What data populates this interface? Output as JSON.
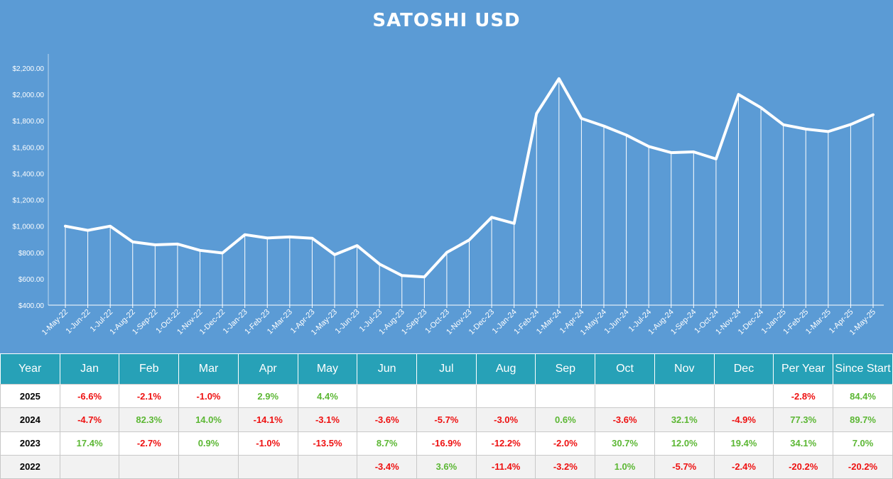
{
  "colors": {
    "chart_bg": "#5b9bd5",
    "header_bg": "#27a1b7",
    "positive": "#5cb734",
    "negative": "#ee1111",
    "line": "#ffffff"
  },
  "chart_data": {
    "type": "line",
    "title": "SATOSHI USD",
    "x": [
      "1-May-22",
      "1-Jun-22",
      "1-Jul-22",
      "1-Aug-22",
      "1-Sep-22",
      "1-Oct-22",
      "1-Nov-22",
      "1-Dec-22",
      "1-Jan-23",
      "1-Feb-23",
      "1-Mar-23",
      "1-Apr-23",
      "1-May-23",
      "1-Jun-23",
      "1-Jul-23",
      "1-Aug-23",
      "1-Sep-23",
      "1-Oct-23",
      "1-Nov-23",
      "1-Dec-23",
      "1-Jan-24",
      "1-Feb-24",
      "1-Mar-24",
      "1-Apr-24",
      "1-May-24",
      "1-Jun-24",
      "1-Jul-24",
      "1-Aug-24",
      "1-Sep-24",
      "1-Oct-24",
      "1-Nov-24",
      "1-Dec-24",
      "1-Jan-25",
      "1-Feb-25",
      "1-Mar-25",
      "1-Apr-25",
      "1-May-25"
    ],
    "values": [
      1000,
      968,
      1000,
      880,
      858,
      864,
      816,
      796,
      935,
      910,
      918,
      908,
      783,
      852,
      712,
      625,
      614,
      800,
      895,
      1067,
      1021,
      1855,
      2120,
      1818,
      1760,
      1692,
      1605,
      1558,
      1564,
      1510,
      2000,
      1900,
      1770,
      1737,
      1718,
      1772,
      1846
    ],
    "yticks": [
      "$400.00",
      "$600.00",
      "$800.00",
      "$1,000.00",
      "$1,200.00",
      "$1,400.00",
      "$1,600.00",
      "$1,800.00",
      "$2,000.00",
      "$2,200.00"
    ],
    "ylim": [
      400,
      2200
    ],
    "grid": "vertical drop lines to x-axis"
  },
  "table": {
    "headers": [
      "Year",
      "Jan",
      "Feb",
      "Mar",
      "Apr",
      "May",
      "Jun",
      "Jul",
      "Aug",
      "Sep",
      "Oct",
      "Nov",
      "Dec",
      "Per Year",
      "Since Start"
    ],
    "rows": [
      {
        "year": "2025",
        "cells": [
          "-6.6%",
          "-2.1%",
          "-1.0%",
          "2.9%",
          "4.4%",
          "",
          "",
          "",
          "",
          "",
          "",
          "",
          "-2.8%",
          "84.4%"
        ]
      },
      {
        "year": "2024",
        "cells": [
          "-4.7%",
          "82.3%",
          "14.0%",
          "-14.1%",
          "-3.1%",
          "-3.6%",
          "-5.7%",
          "-3.0%",
          "0.6%",
          "-3.6%",
          "32.1%",
          "-4.9%",
          "77.3%",
          "89.7%"
        ]
      },
      {
        "year": "2023",
        "cells": [
          "17.4%",
          "-2.7%",
          "0.9%",
          "-1.0%",
          "-13.5%",
          "8.7%",
          "-16.9%",
          "-12.2%",
          "-2.0%",
          "30.7%",
          "12.0%",
          "19.4%",
          "34.1%",
          "7.0%"
        ]
      },
      {
        "year": "2022",
        "cells": [
          "",
          "",
          "",
          "",
          "",
          "-3.4%",
          "3.6%",
          "-11.4%",
          "-3.2%",
          "1.0%",
          "-5.7%",
          "-2.4%",
          "-20.2%",
          "-20.2%"
        ]
      }
    ]
  }
}
